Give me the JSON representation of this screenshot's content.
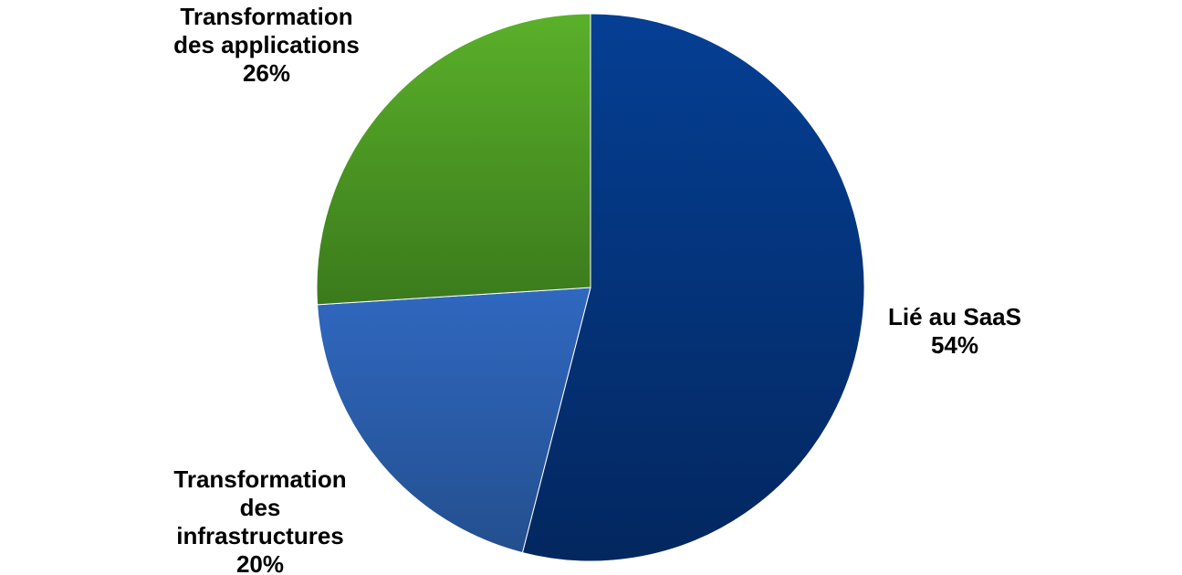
{
  "chart_data": {
    "type": "pie",
    "title": "",
    "slices": [
      {
        "label_lines": [
          "Lié au SaaS"
        ],
        "pct_label": "54%",
        "value": 54,
        "color_light": "#053f94",
        "color_dark": "#03275f"
      },
      {
        "label_lines": [
          "Transformation",
          "des",
          "infrastructures"
        ],
        "pct_label": "20%",
        "value": 20,
        "color_light": "#3068c0",
        "color_dark": "#234f8e"
      },
      {
        "label_lines": [
          "Transformation",
          "des applications"
        ],
        "pct_label": "26%",
        "value": 26,
        "color_light": "#5ab02a",
        "color_dark": "#3b7a1c"
      }
    ],
    "start_angle_deg": 0,
    "direction": "clockwise",
    "legend": "none",
    "data_labels": "outside"
  }
}
